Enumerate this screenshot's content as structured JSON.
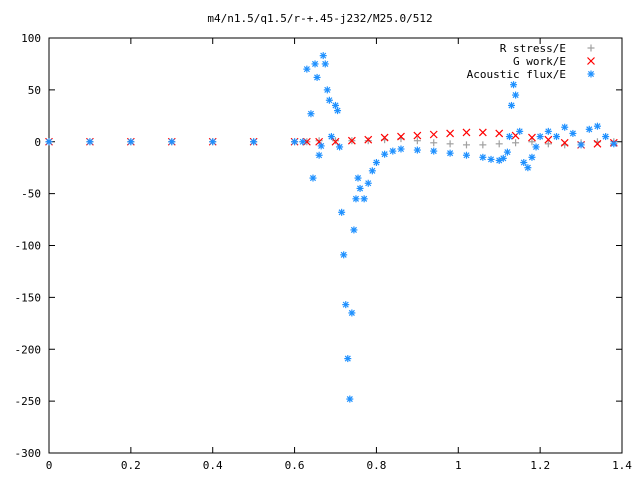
{
  "chart_data": {
    "type": "scatter",
    "title": "m4/n1.5/q1.5/r-+.45-j232/M25.0/512",
    "xlabel": "",
    "ylabel": "",
    "xlim": [
      0,
      1.4
    ],
    "ylim": [
      -300,
      100
    ],
    "x_ticks": [
      "0",
      "0.2",
      "0.4",
      "0.6",
      "0.8",
      "1",
      "1.2",
      "1.4"
    ],
    "y_ticks": [
      "100",
      "50",
      "0",
      "-50",
      "-100",
      "-150",
      "-200",
      "-250",
      "-300"
    ],
    "grid": false,
    "legend_position": "top-right",
    "series": [
      {
        "name": "R stress/E",
        "marker": "plus",
        "color": "#a0a0a0",
        "points": [
          [
            0.0,
            0
          ],
          [
            0.1,
            0
          ],
          [
            0.2,
            0
          ],
          [
            0.3,
            0
          ],
          [
            0.4,
            0
          ],
          [
            0.5,
            0
          ],
          [
            0.6,
            0
          ],
          [
            0.63,
            0
          ],
          [
            0.66,
            1
          ],
          [
            0.7,
            1
          ],
          [
            0.74,
            1
          ],
          [
            0.78,
            1
          ],
          [
            0.82,
            2
          ],
          [
            0.86,
            3
          ],
          [
            0.9,
            1
          ],
          [
            0.94,
            -1
          ],
          [
            0.98,
            -2
          ],
          [
            1.02,
            -3
          ],
          [
            1.06,
            -3
          ],
          [
            1.1,
            -2
          ],
          [
            1.14,
            -1
          ],
          [
            1.18,
            0
          ],
          [
            1.22,
            -2
          ],
          [
            1.26,
            -3
          ],
          [
            1.3,
            -1
          ],
          [
            1.34,
            0
          ],
          [
            1.38,
            0
          ]
        ]
      },
      {
        "name": "G work/E",
        "marker": "cross",
        "color": "#ff0000",
        "points": [
          [
            0.0,
            0
          ],
          [
            0.1,
            0
          ],
          [
            0.2,
            0
          ],
          [
            0.3,
            0
          ],
          [
            0.4,
            0
          ],
          [
            0.5,
            0
          ],
          [
            0.6,
            0
          ],
          [
            0.63,
            0
          ],
          [
            0.66,
            0
          ],
          [
            0.7,
            0
          ],
          [
            0.74,
            1
          ],
          [
            0.78,
            2
          ],
          [
            0.82,
            4
          ],
          [
            0.86,
            5
          ],
          [
            0.9,
            6
          ],
          [
            0.94,
            7
          ],
          [
            0.98,
            8
          ],
          [
            1.02,
            9
          ],
          [
            1.06,
            9
          ],
          [
            1.1,
            8
          ],
          [
            1.14,
            6
          ],
          [
            1.18,
            4
          ],
          [
            1.22,
            2
          ],
          [
            1.26,
            -1
          ],
          [
            1.3,
            -3
          ],
          [
            1.34,
            -2
          ],
          [
            1.38,
            -1
          ]
        ]
      },
      {
        "name": "Acoustic flux/E",
        "marker": "star",
        "color": "#1e90ff",
        "points": [
          [
            0.0,
            0
          ],
          [
            0.1,
            0
          ],
          [
            0.2,
            0
          ],
          [
            0.3,
            0
          ],
          [
            0.4,
            0
          ],
          [
            0.5,
            0
          ],
          [
            0.6,
            0
          ],
          [
            0.62,
            0
          ],
          [
            0.63,
            70
          ],
          [
            0.64,
            27
          ],
          [
            0.645,
            -35
          ],
          [
            0.65,
            75
          ],
          [
            0.655,
            62
          ],
          [
            0.66,
            -13
          ],
          [
            0.665,
            -4
          ],
          [
            0.67,
            83
          ],
          [
            0.675,
            75
          ],
          [
            0.68,
            50
          ],
          [
            0.685,
            40
          ],
          [
            0.69,
            5
          ],
          [
            0.7,
            35
          ],
          [
            0.705,
            30
          ],
          [
            0.71,
            -5
          ],
          [
            0.715,
            -68
          ],
          [
            0.72,
            -109
          ],
          [
            0.725,
            -157
          ],
          [
            0.73,
            -209
          ],
          [
            0.735,
            -248
          ],
          [
            0.74,
            -165
          ],
          [
            0.745,
            -85
          ],
          [
            0.75,
            -55
          ],
          [
            0.755,
            -35
          ],
          [
            0.76,
            -45
          ],
          [
            0.77,
            -55
          ],
          [
            0.78,
            -40
          ],
          [
            0.79,
            -28
          ],
          [
            0.8,
            -20
          ],
          [
            0.82,
            -12
          ],
          [
            0.84,
            -9
          ],
          [
            0.86,
            -7
          ],
          [
            0.9,
            -8
          ],
          [
            0.94,
            -9
          ],
          [
            0.98,
            -11
          ],
          [
            1.02,
            -13
          ],
          [
            1.06,
            -15
          ],
          [
            1.08,
            -17
          ],
          [
            1.1,
            -18
          ],
          [
            1.11,
            -16
          ],
          [
            1.12,
            -10
          ],
          [
            1.125,
            5
          ],
          [
            1.13,
            35
          ],
          [
            1.135,
            55
          ],
          [
            1.14,
            45
          ],
          [
            1.15,
            10
          ],
          [
            1.16,
            -20
          ],
          [
            1.17,
            -25
          ],
          [
            1.18,
            -15
          ],
          [
            1.19,
            -5
          ],
          [
            1.2,
            5
          ],
          [
            1.22,
            10
          ],
          [
            1.24,
            5
          ],
          [
            1.26,
            14
          ],
          [
            1.28,
            8
          ],
          [
            1.3,
            -3
          ],
          [
            1.32,
            12
          ],
          [
            1.34,
            15
          ],
          [
            1.36,
            5
          ],
          [
            1.38,
            -2
          ]
        ]
      }
    ]
  }
}
